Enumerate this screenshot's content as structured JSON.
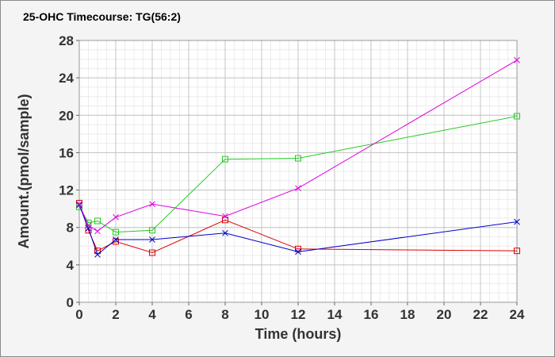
{
  "chart_data": {
    "type": "line",
    "title": "25-OHC Timecourse: TG(56:2)",
    "xlabel": "Time (hours)",
    "ylabel": "Amount.(pmol/sample)",
    "xlim": [
      0,
      24
    ],
    "ylim": [
      0,
      28
    ],
    "xticks": [
      0,
      2,
      4,
      6,
      8,
      10,
      12,
      14,
      16,
      18,
      20,
      22,
      24
    ],
    "yticks": [
      0,
      4,
      8,
      12,
      16,
      20,
      24,
      28
    ],
    "x_minor_step": 0.5,
    "y_minor_step": 1,
    "grid": true,
    "legend": "none",
    "series": [
      {
        "color": "#dd0000",
        "marker": "square",
        "x": [
          0,
          0.5,
          1,
          2,
          4,
          8,
          12,
          24
        ],
        "y": [
          10.6,
          7.7,
          5.5,
          6.5,
          5.3,
          8.8,
          5.7,
          5.5
        ]
      },
      {
        "color": "#22cc22",
        "marker": "square",
        "x": [
          0,
          0.5,
          1,
          2,
          4,
          8,
          12,
          24
        ],
        "y": [
          10.2,
          8.5,
          8.7,
          7.5,
          7.7,
          15.3,
          15.4,
          19.9
        ]
      },
      {
        "color": "#0000cc",
        "marker": "x",
        "x": [
          0,
          0.5,
          1,
          2,
          4,
          8,
          12,
          24
        ],
        "y": [
          10.4,
          7.9,
          5.1,
          6.7,
          6.7,
          7.4,
          5.4,
          8.6
        ]
      },
      {
        "color": "#dd00dd",
        "marker": "x",
        "x": [
          0,
          0.5,
          1,
          2,
          4,
          8,
          12,
          24
        ],
        "y": [
          10.5,
          8.2,
          7.6,
          9.1,
          10.5,
          9.2,
          12.2,
          25.9
        ]
      }
    ]
  }
}
